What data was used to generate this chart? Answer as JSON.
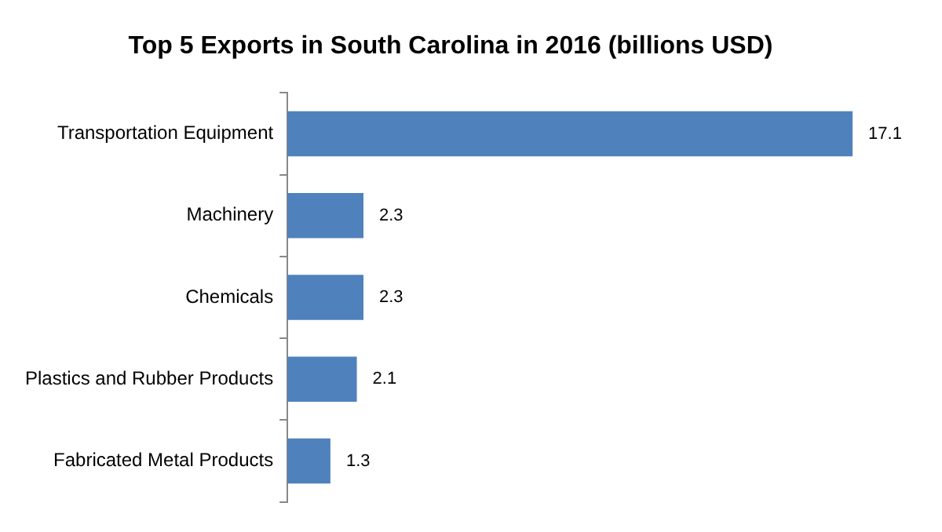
{
  "chart_data": {
    "type": "bar",
    "orientation": "horizontal",
    "title": "Top 5 Exports in South Carolina in 2016 (billions USD)",
    "categories": [
      "Transportation Equipment",
      "Machinery",
      "Chemicals",
      "Plastics and Rubber Products",
      "Fabricated Metal Products"
    ],
    "values": [
      17.1,
      2.3,
      2.3,
      2.1,
      1.3
    ],
    "color": "#4f81bd",
    "data_labels": true,
    "legend": false,
    "tick_labels": "y"
  }
}
